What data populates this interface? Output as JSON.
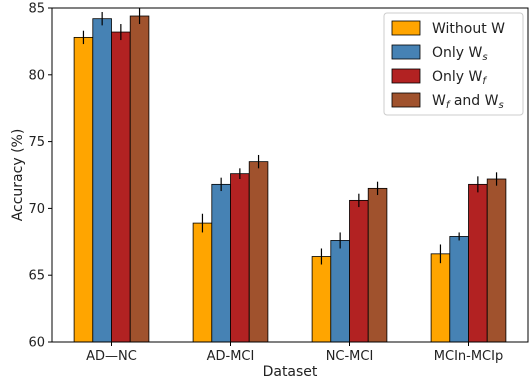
{
  "chart_data": {
    "type": "bar",
    "xlabel": "Dataset",
    "ylabel": "Accuracy (%)",
    "ylim": [
      60,
      85
    ],
    "yticks": [
      60,
      65,
      70,
      75,
      80,
      85
    ],
    "grid": false,
    "legend_position": "top-right",
    "categories": [
      "AD—NC",
      "AD-MCI",
      "NC-MCI",
      "MCIn-MCIp"
    ],
    "series": [
      {
        "name": "Without W",
        "legend": {
          "base": "Without W",
          "sub": "",
          "mid": "",
          "sub2": ""
        },
        "color": "#FFA500",
        "values": [
          82.8,
          68.9,
          66.4,
          66.6
        ],
        "errors": [
          0.5,
          0.7,
          0.6,
          0.7
        ]
      },
      {
        "name": "Only Ws",
        "legend": {
          "base": "Only W",
          "sub": "s",
          "mid": "",
          "sub2": ""
        },
        "color": "#4682B4",
        "values": [
          84.2,
          71.8,
          67.6,
          67.9
        ],
        "errors": [
          0.5,
          0.5,
          0.6,
          0.3
        ]
      },
      {
        "name": "Only Wf",
        "legend": {
          "base": "Only W",
          "sub": "f",
          "mid": "",
          "sub2": ""
        },
        "color": "#B22222",
        "values": [
          83.2,
          72.6,
          70.6,
          71.8
        ],
        "errors": [
          0.6,
          0.4,
          0.5,
          0.6
        ]
      },
      {
        "name": "Wf and Ws",
        "legend": {
          "base": "W",
          "sub": "f",
          "mid": " and  W",
          "sub2": "s"
        },
        "color": "#A0522D",
        "values": [
          84.4,
          73.5,
          71.5,
          72.2
        ],
        "errors": [
          0.6,
          0.5,
          0.5,
          0.5
        ]
      }
    ]
  }
}
